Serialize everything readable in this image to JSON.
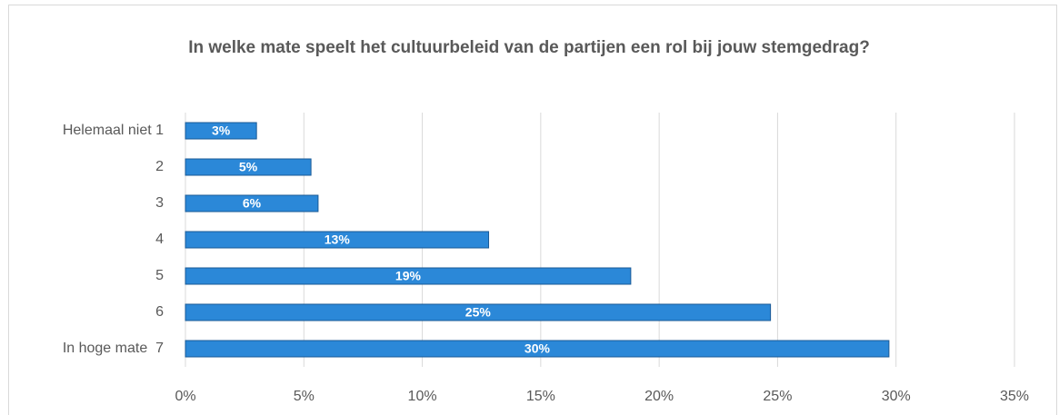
{
  "chart_data": {
    "type": "hbar",
    "title": "In welke mate speelt het cultuurbeleid van de partijen een rol bij jouw stemgedrag?",
    "categories": [
      "Helemaal niet 1",
      "2",
      "3",
      "4",
      "5",
      "6",
      "In hoge mate  7"
    ],
    "values": [
      3.0,
      5.3,
      5.6,
      12.8,
      18.8,
      24.7,
      29.7
    ],
    "value_labels": [
      "3%",
      "5%",
      "6%",
      "13%",
      "19%",
      "25%",
      "30%"
    ],
    "color": "#2b88d8",
    "xlim": [
      0,
      35
    ],
    "xticks": [
      {
        "value": 0,
        "label": "0%"
      },
      {
        "value": 5,
        "label": "5%"
      },
      {
        "value": 10,
        "label": "10%"
      },
      {
        "value": 15,
        "label": "15%"
      },
      {
        "value": 20,
        "label": "20%"
      },
      {
        "value": 25,
        "label": "25%"
      },
      {
        "value": 30,
        "label": "30%"
      },
      {
        "value": 35,
        "label": "35%"
      }
    ],
    "grid": true
  }
}
